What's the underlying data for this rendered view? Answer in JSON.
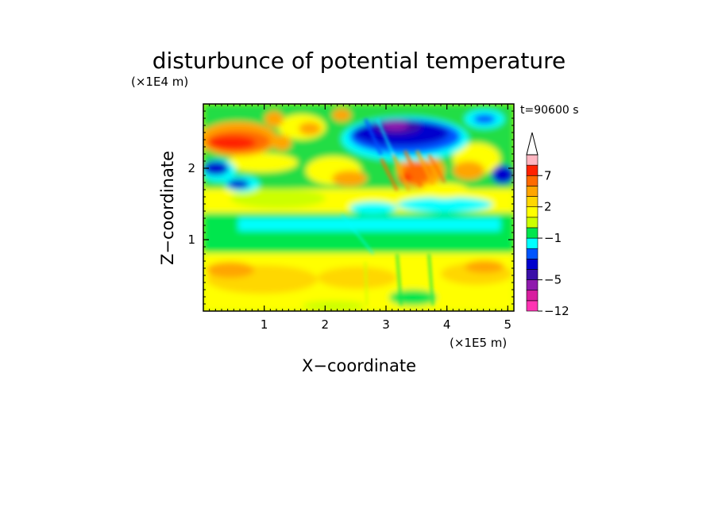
{
  "chart_data": {
    "type": "heatmap",
    "title": "disturbunce of potential temperature",
    "time_label": "t=90600 s",
    "xlabel": "X−coordinate",
    "ylabel": "Z−coordinate",
    "x_unit": "(×1E5 m)",
    "y_unit": "(×1E4 m)",
    "xlim": [
      0,
      5.1
    ],
    "ylim": [
      0,
      2.9
    ],
    "x_ticks": [
      {
        "v": 1,
        "label": "1"
      },
      {
        "v": 2,
        "label": "2"
      },
      {
        "v": 3,
        "label": "3"
      },
      {
        "v": 4,
        "label": "4"
      },
      {
        "v": 5,
        "label": "5"
      }
    ],
    "y_ticks": [
      {
        "v": 1,
        "label": "1"
      },
      {
        "v": 2,
        "label": "2"
      }
    ],
    "colorbar": {
      "levels": [
        -12,
        -9,
        -7,
        -5,
        -4,
        -3,
        -2,
        -1,
        0,
        1,
        2,
        3,
        5,
        7,
        9,
        11
      ],
      "labels": [
        {
          "v": 7,
          "label": "7"
        },
        {
          "v": 2,
          "label": "2"
        },
        {
          "v": -1,
          "label": "−1"
        },
        {
          "v": -5,
          "label": "−5"
        },
        {
          "v": -12,
          "label": "−12"
        }
      ],
      "colors": [
        "#ff33b3",
        "#d81e9f",
        "#8f1aad",
        "#3a0fa8",
        "#0000cd",
        "#0055ff",
        "#00ffff",
        "#00e64d",
        "#ccff00",
        "#ffff00",
        "#ffd700",
        "#ffa500",
        "#ff6a00",
        "#ff2200",
        "#ffb6c1"
      ],
      "extend_top": true
    },
    "field_description": [
      {
        "x": [
          0,
          5.1
        ],
        "z": [
          0,
          0.95
        ],
        "value": "0 to +2 (yellow/orange with green patches)"
      },
      {
        "x": [
          0,
          5.1
        ],
        "z": [
          0.95,
          1.4
        ],
        "value": "-1 to 0 (green/cyan band)"
      },
      {
        "x": [
          0,
          0.8
        ],
        "z": [
          2.2,
          2.6
        ],
        "value": "+5 to +9 (red)"
      },
      {
        "x": [
          2.5,
          4.3
        ],
        "z": [
          2.3,
          2.8
        ],
        "value": "-5 to -9 (blue/purple)"
      },
      {
        "x": [
          0,
          0.6
        ],
        "z": [
          1.7,
          2.2
        ],
        "value": "-2 to -5 (blue)"
      },
      {
        "x": [
          3.0,
          4.4
        ],
        "z": [
          1.7,
          2.3
        ],
        "value": "+2 to +5 (orange wave pattern)"
      }
    ]
  }
}
